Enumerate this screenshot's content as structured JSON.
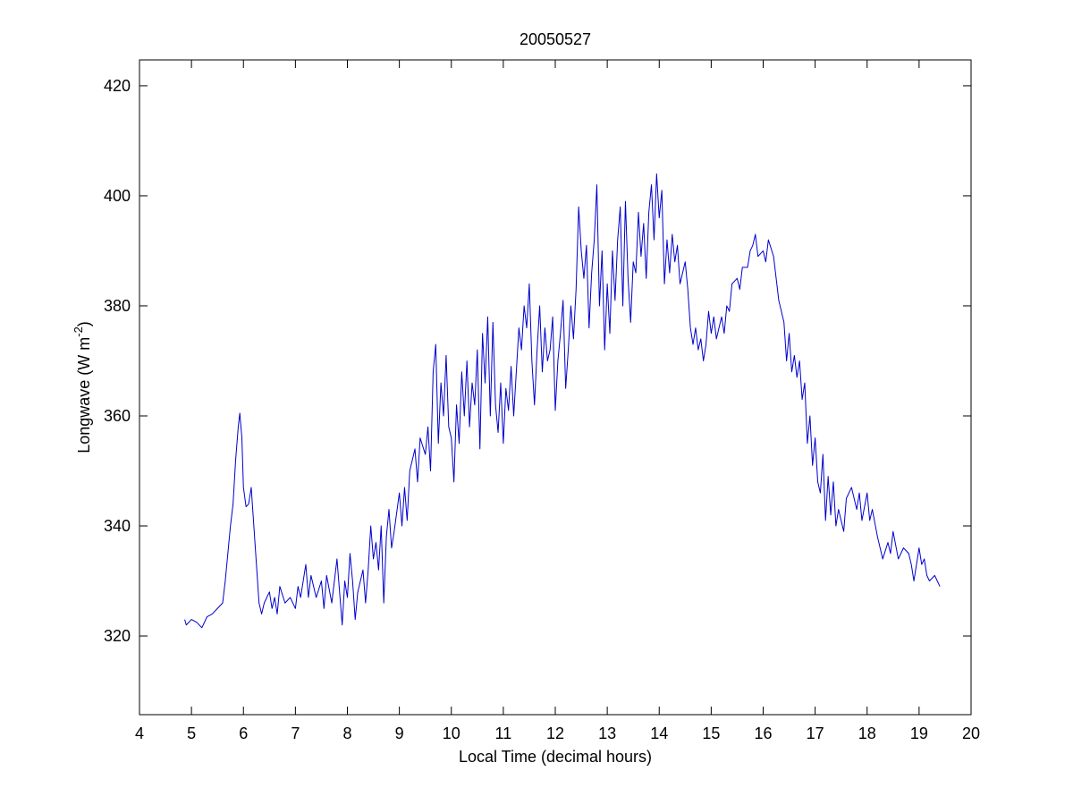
{
  "chart_data": {
    "type": "line",
    "title": "20050527",
    "x_label": "Local Time (decimal hours)",
    "y_label": [
      "Longwave (W m",
      "-2",
      ")"
    ],
    "xlim": [
      4,
      20
    ],
    "xticks": [
      4,
      5,
      6,
      7,
      8,
      9,
      10,
      11,
      12,
      13,
      14,
      15,
      16,
      17,
      18,
      19,
      20
    ],
    "ylim": [
      305.7,
      424.7
    ],
    "yticks": [
      320,
      340,
      360,
      380,
      400,
      420
    ],
    "grid": false,
    "x": [
      4.87,
      4.9,
      5.0,
      5.1,
      5.2,
      5.3,
      5.4,
      5.5,
      5.6,
      5.65,
      5.7,
      5.75,
      5.8,
      5.85,
      5.9,
      5.93,
      5.97,
      6.0,
      6.05,
      6.1,
      6.15,
      6.2,
      6.25,
      6.3,
      6.35,
      6.4,
      6.5,
      6.55,
      6.6,
      6.65,
      6.7,
      6.8,
      6.9,
      7.0,
      7.05,
      7.1,
      7.2,
      7.25,
      7.3,
      7.4,
      7.5,
      7.55,
      7.6,
      7.7,
      7.8,
      7.85,
      7.9,
      7.95,
      8.0,
      8.05,
      8.1,
      8.15,
      8.2,
      8.3,
      8.35,
      8.4,
      8.45,
      8.5,
      8.55,
      8.6,
      8.65,
      8.7,
      8.75,
      8.8,
      8.85,
      8.9,
      9.0,
      9.05,
      9.1,
      9.15,
      9.2,
      9.3,
      9.35,
      9.4,
      9.5,
      9.55,
      9.6,
      9.65,
      9.7,
      9.75,
      9.8,
      9.85,
      9.9,
      9.95,
      10.0,
      10.05,
      10.1,
      10.15,
      10.2,
      10.25,
      10.3,
      10.35,
      10.4,
      10.45,
      10.5,
      10.55,
      10.6,
      10.65,
      10.7,
      10.75,
      10.8,
      10.85,
      10.9,
      10.95,
      11.0,
      11.05,
      11.1,
      11.15,
      11.2,
      11.3,
      11.35,
      11.4,
      11.45,
      11.5,
      11.55,
      11.6,
      11.65,
      11.7,
      11.75,
      11.8,
      11.85,
      11.9,
      11.95,
      12.0,
      12.05,
      12.1,
      12.15,
      12.2,
      12.25,
      12.3,
      12.35,
      12.4,
      12.45,
      12.5,
      12.55,
      12.6,
      12.65,
      12.7,
      12.75,
      12.8,
      12.85,
      12.9,
      12.95,
      13.0,
      13.05,
      13.1,
      13.15,
      13.2,
      13.25,
      13.3,
      13.35,
      13.4,
      13.45,
      13.5,
      13.55,
      13.6,
      13.65,
      13.7,
      13.75,
      13.8,
      13.85,
      13.9,
      13.95,
      14.0,
      14.05,
      14.1,
      14.15,
      14.2,
      14.25,
      14.3,
      14.35,
      14.4,
      14.5,
      14.55,
      14.6,
      14.65,
      14.7,
      14.75,
      14.8,
      14.85,
      14.9,
      14.95,
      15.0,
      15.05,
      15.1,
      15.2,
      15.25,
      15.3,
      15.35,
      15.4,
      15.5,
      15.55,
      15.6,
      15.7,
      15.75,
      15.8,
      15.85,
      15.9,
      16.0,
      16.05,
      16.1,
      16.2,
      16.25,
      16.3,
      16.4,
      16.45,
      16.5,
      16.55,
      16.6,
      16.65,
      16.7,
      16.75,
      16.8,
      16.85,
      16.9,
      16.95,
      17.0,
      17.05,
      17.1,
      17.15,
      17.2,
      17.25,
      17.3,
      17.35,
      17.4,
      17.45,
      17.5,
      17.55,
      17.6,
      17.7,
      17.8,
      17.85,
      17.9,
      18.0,
      18.05,
      18.1,
      18.2,
      18.25,
      18.3,
      18.4,
      18.45,
      18.5,
      18.6,
      18.7,
      18.8,
      18.85,
      18.9,
      19.0,
      19.05,
      19.1,
      19.15,
      19.2,
      19.3,
      19.35,
      19.4
    ],
    "series": [
      {
        "color": "#0000cc",
        "values": [
          323,
          322,
          323,
          322.5,
          321.5,
          323.5,
          324,
          325,
          326,
          330,
          335,
          340,
          344,
          352,
          358,
          360.5,
          356,
          347,
          343.5,
          344,
          347,
          340,
          333,
          326,
          324,
          326,
          328,
          325,
          327,
          324,
          329,
          326,
          327,
          325,
          329,
          327,
          333,
          327,
          331,
          327,
          330,
          325,
          331,
          326,
          334,
          328,
          322,
          330,
          327,
          335,
          330,
          323,
          328,
          332,
          326,
          332,
          340,
          334,
          337,
          332,
          340,
          326,
          338,
          343,
          336,
          339,
          346,
          340,
          347,
          341,
          350,
          354,
          348,
          356,
          353,
          358,
          350,
          368,
          373,
          355,
          366,
          360,
          371,
          358,
          356,
          348,
          362,
          355,
          368,
          360,
          370,
          358,
          366,
          362,
          372,
          354,
          375,
          366,
          378,
          360,
          377,
          362,
          357,
          366,
          355,
          365,
          361,
          369,
          360,
          376,
          372,
          380,
          376,
          384,
          370,
          362,
          372,
          380,
          368,
          376,
          370,
          372,
          378,
          361,
          370,
          375,
          381,
          365,
          372,
          380,
          374,
          383,
          398,
          390,
          385,
          391,
          376,
          386,
          392,
          402,
          380,
          390,
          372,
          384,
          375,
          390,
          381,
          392,
          398,
          380,
          399,
          385,
          377,
          388,
          386,
          397,
          389,
          395,
          385,
          397,
          402,
          392,
          404,
          396,
          401,
          384,
          392,
          386,
          393,
          388,
          391,
          384,
          388,
          383,
          376,
          373,
          376,
          372,
          374,
          370,
          373,
          379,
          375,
          378,
          374,
          378,
          375,
          380,
          379,
          384,
          385,
          383,
          387,
          387,
          390,
          391,
          393,
          389,
          390,
          388,
          392,
          389,
          385,
          381,
          377,
          370,
          375,
          368,
          371,
          367,
          370,
          363,
          366,
          355,
          360,
          351,
          356,
          348,
          346,
          353,
          341,
          349,
          342,
          348,
          340,
          343,
          341,
          339,
          345,
          347,
          343,
          346,
          341,
          346,
          341,
          343,
          338,
          336,
          334,
          337,
          335,
          339,
          334,
          336,
          335,
          333,
          330,
          336,
          333,
          334,
          331,
          330,
          331,
          330,
          329
        ]
      }
    ]
  }
}
